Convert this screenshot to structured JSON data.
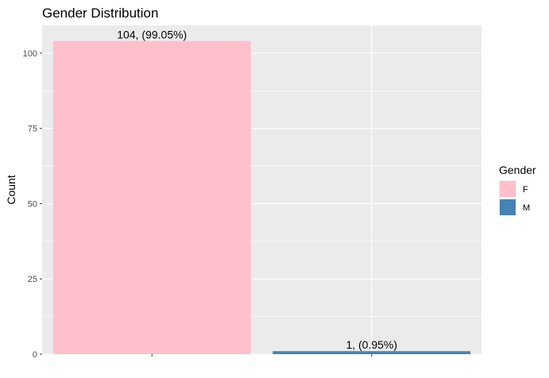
{
  "chart_data": {
    "type": "bar",
    "title": "Gender Distribution",
    "xlabel": "",
    "ylabel": "Count",
    "categories": [
      "F",
      "M"
    ],
    "values": [
      104,
      1
    ],
    "data_labels": [
      "104, (99.05%)",
      "1, (0.95%)"
    ],
    "colors": [
      "#ffc0cb",
      "#4682b4"
    ],
    "yticks": [
      0,
      25,
      50,
      75,
      100
    ],
    "ylim": [
      0,
      109.2
    ],
    "grid": true,
    "panel_background": "#ebebeb",
    "grid_color": "#ffffff",
    "legend": {
      "title": "Gender",
      "position": "right",
      "entries": [
        "F",
        "M"
      ]
    }
  }
}
